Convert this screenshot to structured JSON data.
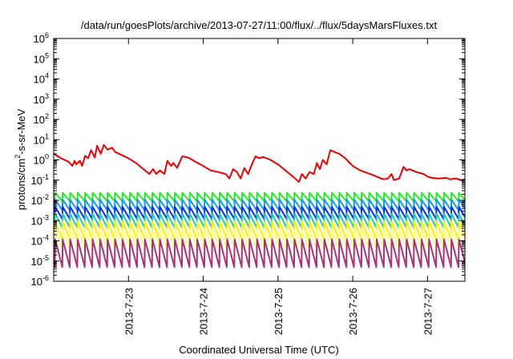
{
  "chart_data": {
    "type": "line",
    "title": "/data/run/goesPlots/archive/2013-07-27/11:00/flux/../flux/5daysMarsFluxes.txt",
    "xlabel": "Coordinated Universal Time (UTC)",
    "ylabel": {
      "prefix": "protons/cm",
      "superscript": "2",
      "suffix": "-s-sr-MeV"
    },
    "yscale": "log",
    "ylim": [
      1e-06,
      1000000.0
    ],
    "y_ticks": [
      {
        "base": "10",
        "exp": "6",
        "value": 1000000.0
      },
      {
        "base": "10",
        "exp": "5",
        "value": 100000.0
      },
      {
        "base": "10",
        "exp": "4",
        "value": 10000.0
      },
      {
        "base": "10",
        "exp": "3",
        "value": 1000.0
      },
      {
        "base": "10",
        "exp": "2",
        "value": 100.0
      },
      {
        "base": "10",
        "exp": "1",
        "value": 10.0
      },
      {
        "base": "10",
        "exp": "0",
        "value": 1.0
      },
      {
        "base": "10",
        "exp": "-1",
        "value": 0.1
      },
      {
        "base": "10",
        "exp": "-2",
        "value": 0.01
      },
      {
        "base": "10",
        "exp": "-3",
        "value": 0.001
      },
      {
        "base": "10",
        "exp": "-4",
        "value": 0.0001
      },
      {
        "base": "10",
        "exp": "-5",
        "value": 1e-05
      },
      {
        "base": "10",
        "exp": "-6",
        "value": 1e-06
      }
    ],
    "x_ticks": [
      {
        "label": "2013-7-23",
        "day": 1.0
      },
      {
        "label": "2013-7-24",
        "day": 2.0
      },
      {
        "label": "2013-7-25",
        "day": 3.0
      },
      {
        "label": "2013-7-26",
        "day": 4.0
      },
      {
        "label": "2013-7-27",
        "day": 5.0
      }
    ],
    "x_range_days": [
      0.0,
      5.5
    ],
    "grid": false,
    "series": [
      {
        "color": "#ee0000",
        "points": [
          [
            0.0,
            2.0
          ],
          [
            0.1,
            1.2
          ],
          [
            0.2,
            0.8
          ],
          [
            0.25,
            0.5
          ],
          [
            0.28,
            0.9
          ],
          [
            0.3,
            0.6
          ],
          [
            0.35,
            0.9
          ],
          [
            0.38,
            0.5
          ],
          [
            0.42,
            1.6
          ],
          [
            0.46,
            1.2
          ],
          [
            0.5,
            3.0
          ],
          [
            0.55,
            1.3
          ],
          [
            0.58,
            5.0
          ],
          [
            0.63,
            2.0
          ],
          [
            0.67,
            5.5
          ],
          [
            0.72,
            3.2
          ],
          [
            0.78,
            4.0
          ],
          [
            0.82,
            2.5
          ],
          [
            0.9,
            1.8
          ],
          [
            1.0,
            1.2
          ],
          [
            1.1,
            0.7
          ],
          [
            1.2,
            0.35
          ],
          [
            1.28,
            0.2
          ],
          [
            1.33,
            0.35
          ],
          [
            1.37,
            0.2
          ],
          [
            1.42,
            0.3
          ],
          [
            1.48,
            0.2
          ],
          [
            1.52,
            0.9
          ],
          [
            1.57,
            0.5
          ],
          [
            1.6,
            0.7
          ],
          [
            1.65,
            0.4
          ],
          [
            1.72,
            1.5
          ],
          [
            1.8,
            1.3
          ],
          [
            1.9,
            0.8
          ],
          [
            2.0,
            0.5
          ],
          [
            2.1,
            0.3
          ],
          [
            2.2,
            0.25
          ],
          [
            2.3,
            0.2
          ],
          [
            2.35,
            0.12
          ],
          [
            2.4,
            0.35
          ],
          [
            2.45,
            0.25
          ],
          [
            2.5,
            0.12
          ],
          [
            2.55,
            0.4
          ],
          [
            2.6,
            0.2
          ],
          [
            2.65,
            0.6
          ],
          [
            2.7,
            1.5
          ],
          [
            2.75,
            1.2
          ],
          [
            2.8,
            1.4
          ],
          [
            2.9,
            1.0
          ],
          [
            3.0,
            0.6
          ],
          [
            3.1,
            0.3
          ],
          [
            3.2,
            0.15
          ],
          [
            3.28,
            0.08
          ],
          [
            3.32,
            0.2
          ],
          [
            3.37,
            0.12
          ],
          [
            3.42,
            0.25
          ],
          [
            3.48,
            0.2
          ],
          [
            3.52,
            0.7
          ],
          [
            3.56,
            0.35
          ],
          [
            3.6,
            1.0
          ],
          [
            3.65,
            0.6
          ],
          [
            3.7,
            3.0
          ],
          [
            3.75,
            2.5
          ],
          [
            3.82,
            2.0
          ],
          [
            3.9,
            1.2
          ],
          [
            4.0,
            0.5
          ],
          [
            4.1,
            0.3
          ],
          [
            4.2,
            0.22
          ],
          [
            4.3,
            0.16
          ],
          [
            4.38,
            0.12
          ],
          [
            4.42,
            0.11
          ],
          [
            4.47,
            0.12
          ],
          [
            4.52,
            0.2
          ],
          [
            4.55,
            0.1
          ],
          [
            4.62,
            0.12
          ],
          [
            4.68,
            0.45
          ],
          [
            4.72,
            0.3
          ],
          [
            4.76,
            0.35
          ],
          [
            4.85,
            0.25
          ],
          [
            4.95,
            0.2
          ],
          [
            5.0,
            0.15
          ],
          [
            5.05,
            0.13
          ],
          [
            5.15,
            0.12
          ],
          [
            5.25,
            0.13
          ],
          [
            5.3,
            0.11
          ],
          [
            5.38,
            0.12
          ],
          [
            5.45,
            0.1
          ],
          [
            5.5,
            0.11
          ]
        ]
      },
      {
        "color": "#22ee22",
        "sawtooth": {
          "start": 0.12,
          "period": 0.1,
          "high": 0.024,
          "low": 0.009
        }
      },
      {
        "color": "#1199ff",
        "sawtooth": {
          "start": 0.12,
          "period": 0.1,
          "high": 0.011,
          "low": 0.0032
        }
      },
      {
        "color": "#0033ee",
        "sawtooth": {
          "start": 0.12,
          "period": 0.1,
          "high": 0.0048,
          "low": 0.0012
        }
      },
      {
        "color": "#22ccaa",
        "sawtooth": {
          "start": 0.12,
          "period": 0.1,
          "high": 0.0022,
          "low": 0.00045
        }
      },
      {
        "color": "#ffee00",
        "sawtooth": {
          "start": 0.12,
          "period": 0.1,
          "high": 0.0009,
          "low": 0.00012
        }
      },
      {
        "color": "#ffff88",
        "sawtooth": {
          "start": 0.12,
          "period": 0.1,
          "high": 0.00035,
          "low": 4e-05
        }
      },
      {
        "color": "#aa3377",
        "sawtooth": {
          "start": 0.12,
          "period": 0.1,
          "high": 0.00012,
          "low": 5e-06
        }
      }
    ]
  }
}
